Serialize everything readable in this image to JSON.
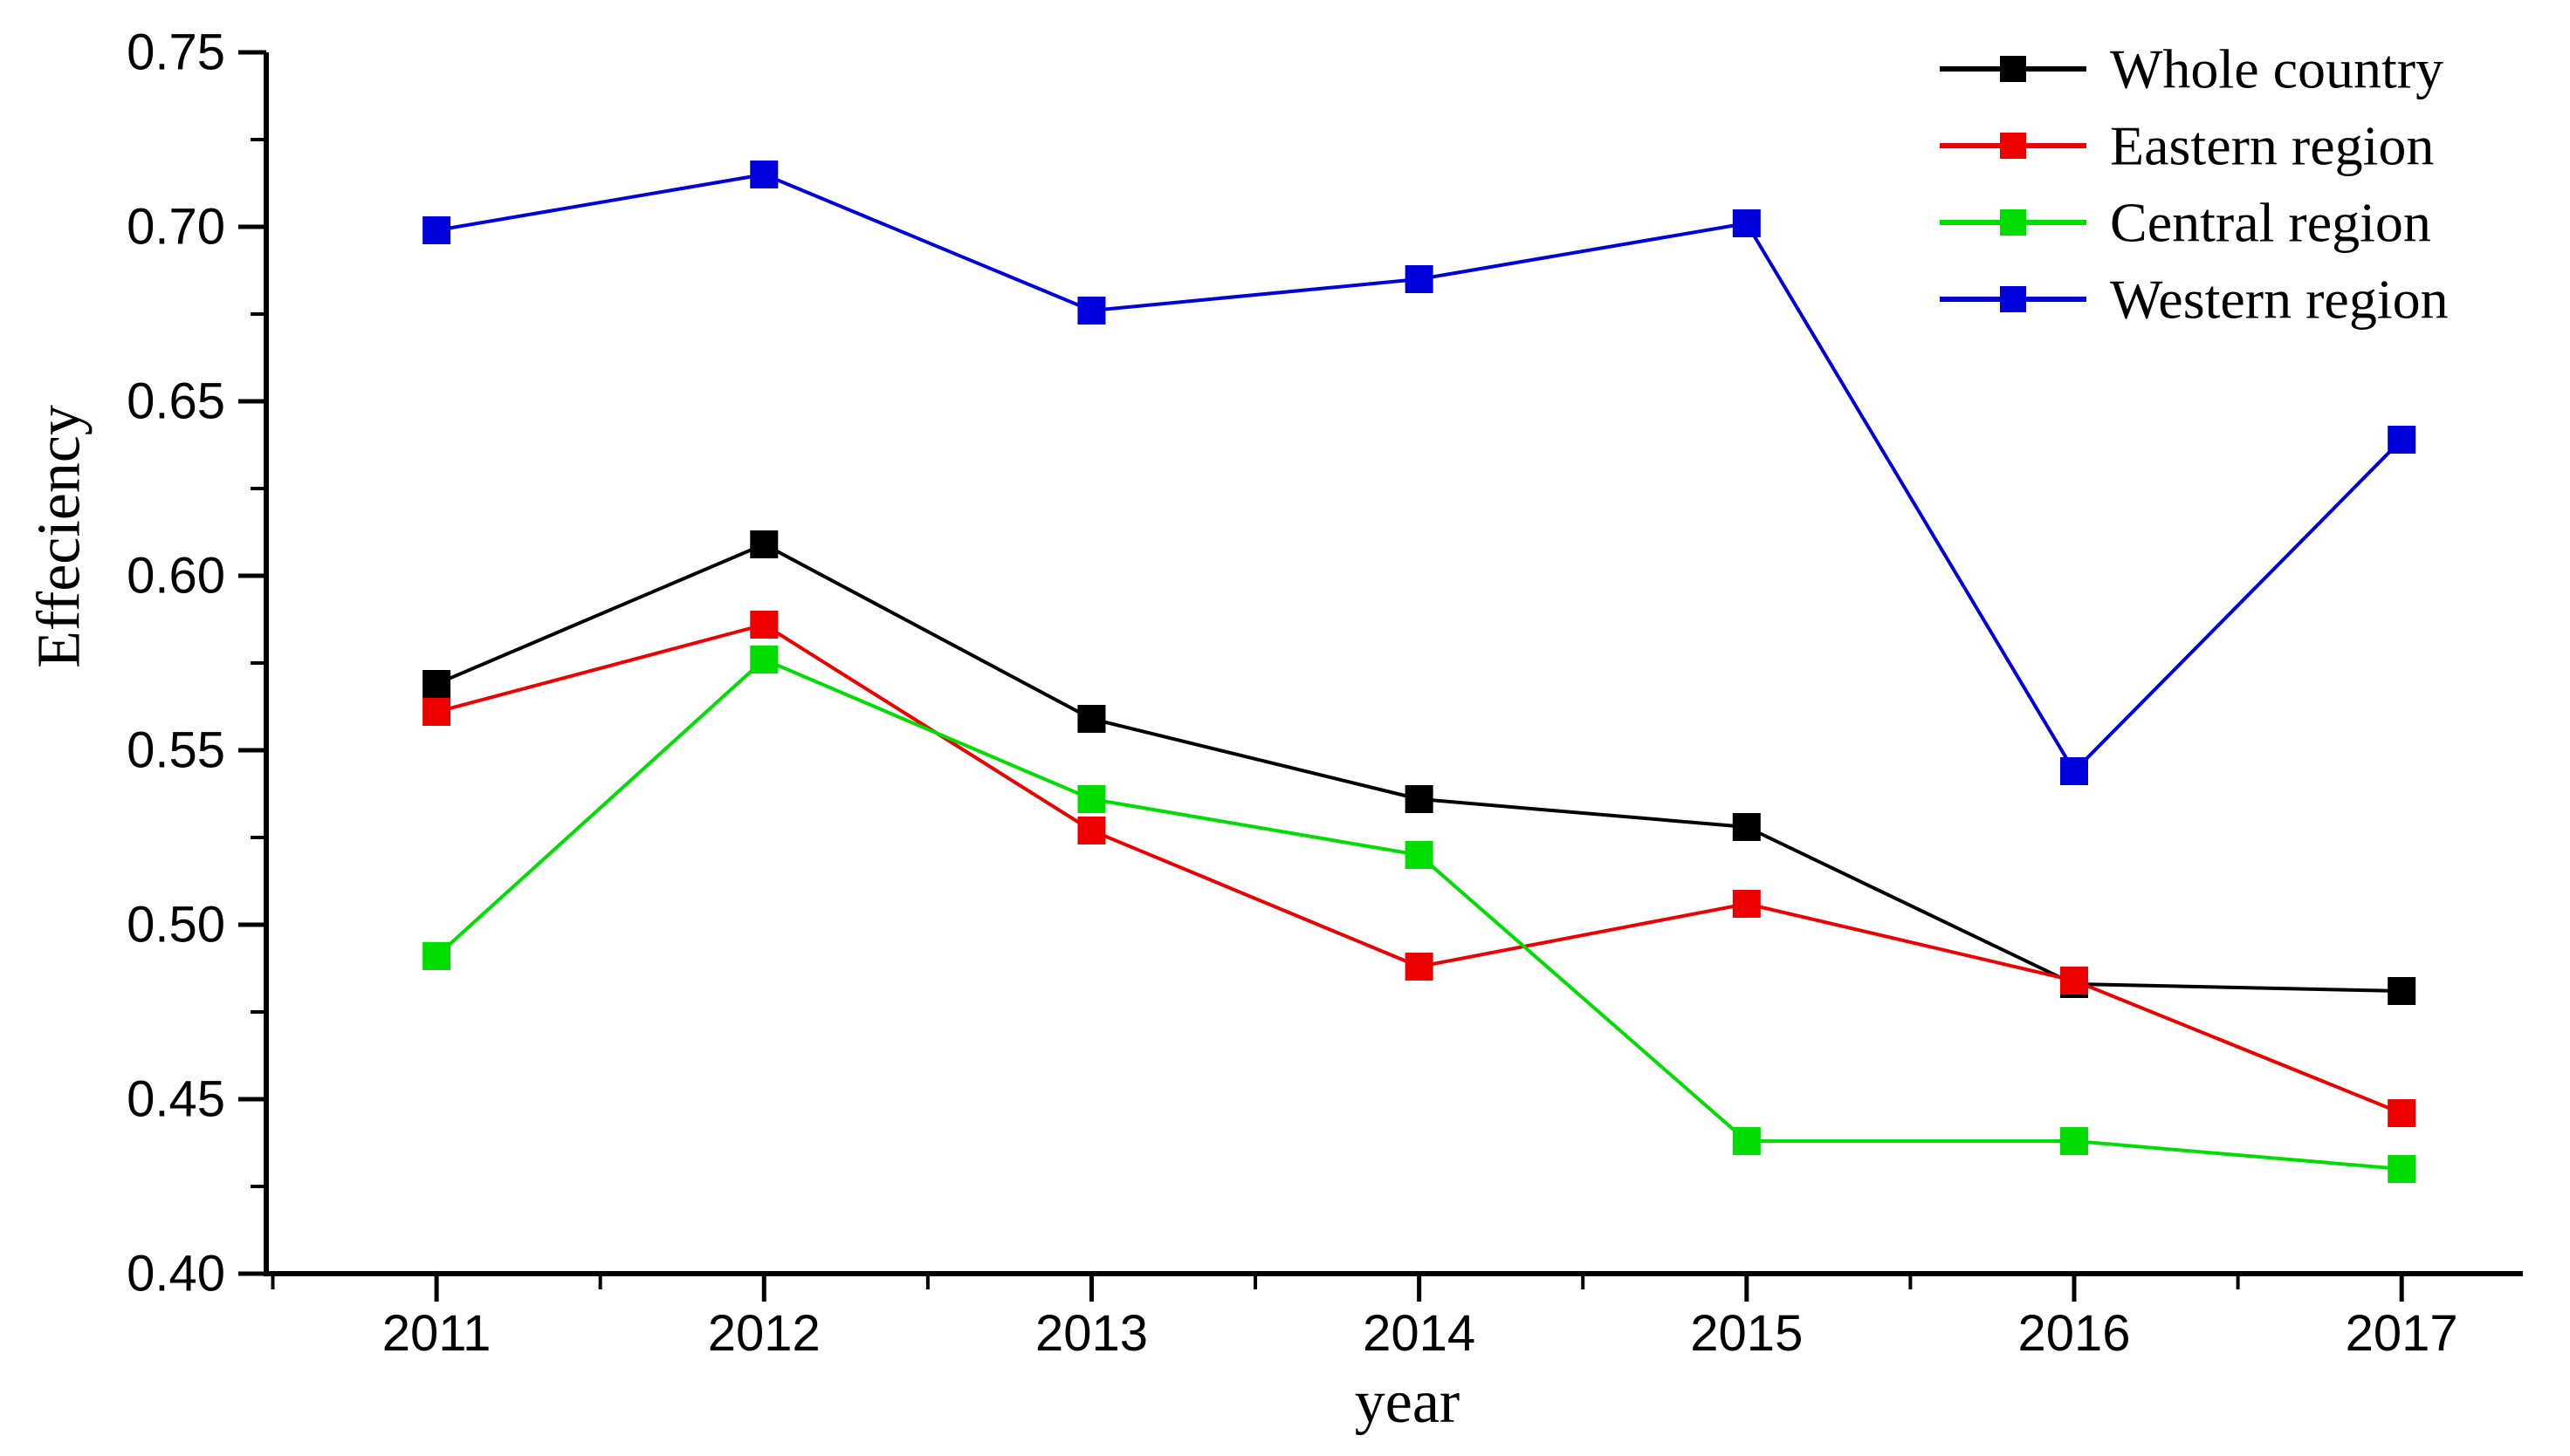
{
  "chart_data": {
    "type": "line",
    "title": "",
    "xlabel": "year",
    "ylabel": "Effeciency",
    "categories": [
      2011,
      2012,
      2013,
      2014,
      2015,
      2016,
      2017
    ],
    "x_tick_labels": [
      "2011",
      "2012",
      "2013",
      "2014",
      "2015",
      "2016",
      "2017"
    ],
    "y_tick_values": [
      0.4,
      0.45,
      0.5,
      0.55,
      0.6,
      0.65,
      0.7,
      0.75
    ],
    "y_tick_labels": [
      "0.40",
      "0.45",
      "0.50",
      "0.55",
      "0.60",
      "0.65",
      "0.70",
      "0.75"
    ],
    "y_minor_ticks": [
      0.425,
      0.475,
      0.525,
      0.575,
      0.625,
      0.675,
      0.725
    ],
    "x_minor_ticks": [
      2010.5,
      2011.5,
      2012.5,
      2013.5,
      2014.5,
      2015.5,
      2016.5
    ],
    "xlim": [
      2010.48,
      2017.37
    ],
    "ylim": [
      0.4,
      0.75
    ],
    "grid": false,
    "legend_position": "top-right",
    "marker": "filled-square",
    "series": [
      {
        "name": "Whole country",
        "color": "#000000",
        "values": [
          0.569,
          0.609,
          0.559,
          0.536,
          0.528,
          0.483,
          0.481
        ]
      },
      {
        "name": "Eastern region",
        "color": "#ee0000",
        "values": [
          0.561,
          0.586,
          0.527,
          0.488,
          0.506,
          0.484,
          0.446
        ]
      },
      {
        "name": "Central region",
        "color": "#00dd00",
        "values": [
          0.491,
          0.576,
          0.536,
          0.52,
          0.438,
          0.438,
          0.43
        ]
      },
      {
        "name": "Western region",
        "color": "#0000dd",
        "values": [
          0.699,
          0.715,
          0.676,
          0.685,
          0.701,
          0.544,
          0.639
        ]
      }
    ]
  }
}
